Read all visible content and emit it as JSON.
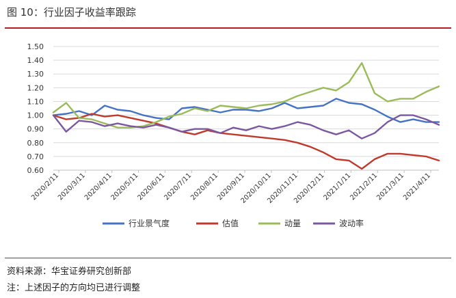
{
  "figure": {
    "title": "图 10：行业因子收益率跟踪",
    "source": "资料来源：华宝证券研究创新部",
    "note": "注：上述因子的方向均已进行调整",
    "accent_color": "#b81c22"
  },
  "chart_data": {
    "type": "line",
    "title": "",
    "xlabel": "",
    "ylabel": "",
    "ylim": [
      0.6,
      1.5
    ],
    "y_ticks": [
      "1.50",
      "1.40",
      "1.30",
      "1.20",
      "1.10",
      "1.00",
      "0.90",
      "0.80",
      "0.70",
      "0.60"
    ],
    "x_ticks": [
      "2020/2/11",
      "2020/3/11",
      "2020/4/11",
      "2020/5/11",
      "2020/6/11",
      "2020/7/11",
      "2020/8/11",
      "2020/9/11",
      "2020/10/11",
      "2020/11/11",
      "2020/12/11",
      "2021/1/11",
      "2021/2/11",
      "2021/3/11",
      "2021/4/11"
    ],
    "grid": "horizontal",
    "legend_position": "bottom",
    "x": [
      "2020/2/11",
      "2020/2/25",
      "2020/3/11",
      "2020/3/25",
      "2020/4/11",
      "2020/4/25",
      "2020/5/11",
      "2020/5/25",
      "2020/6/11",
      "2020/6/25",
      "2020/7/11",
      "2020/7/25",
      "2020/8/11",
      "2020/8/25",
      "2020/9/11",
      "2020/9/25",
      "2020/10/11",
      "2020/10/25",
      "2020/11/11",
      "2020/11/25",
      "2020/12/11",
      "2020/12/25",
      "2021/1/11",
      "2021/1/25",
      "2021/2/11",
      "2021/2/25",
      "2021/3/11",
      "2021/3/25",
      "2021/4/11",
      "2021/4/25",
      "2021/5/7"
    ],
    "series": [
      {
        "name": "行业景气度",
        "color": "#4472c4",
        "values": [
          1.0,
          1.01,
          1.03,
          1.0,
          1.07,
          1.04,
          1.03,
          1.0,
          0.98,
          0.97,
          1.05,
          1.06,
          1.04,
          1.02,
          1.04,
          1.04,
          1.03,
          1.05,
          1.09,
          1.05,
          1.06,
          1.07,
          1.12,
          1.09,
          1.08,
          1.04,
          0.99,
          0.95,
          0.97,
          0.95,
          0.95
        ]
      },
      {
        "name": "估值",
        "color": "#c0392b",
        "values": [
          1.0,
          0.97,
          0.98,
          1.01,
          0.99,
          1.0,
          0.98,
          0.96,
          0.94,
          0.91,
          0.88,
          0.86,
          0.89,
          0.87,
          0.86,
          0.85,
          0.84,
          0.83,
          0.82,
          0.8,
          0.77,
          0.73,
          0.68,
          0.67,
          0.61,
          0.68,
          0.72,
          0.72,
          0.71,
          0.7,
          0.67
        ]
      },
      {
        "name": "动量",
        "color": "#9bbb59",
        "values": [
          1.02,
          1.09,
          0.98,
          0.97,
          0.94,
          0.91,
          0.91,
          0.92,
          0.95,
          0.99,
          1.01,
          1.05,
          1.03,
          1.07,
          1.06,
          1.05,
          1.07,
          1.08,
          1.1,
          1.14,
          1.17,
          1.2,
          1.18,
          1.24,
          1.38,
          1.16,
          1.1,
          1.12,
          1.12,
          1.17,
          1.21
        ]
      },
      {
        "name": "波动率",
        "color": "#7b57a0",
        "values": [
          1.0,
          0.88,
          0.96,
          0.95,
          0.92,
          0.94,
          0.92,
          0.91,
          0.93,
          0.91,
          0.88,
          0.9,
          0.9,
          0.87,
          0.91,
          0.89,
          0.92,
          0.9,
          0.92,
          0.95,
          0.93,
          0.89,
          0.86,
          0.89,
          0.83,
          0.87,
          0.95,
          1.0,
          1.0,
          0.97,
          0.93
        ]
      }
    ]
  }
}
